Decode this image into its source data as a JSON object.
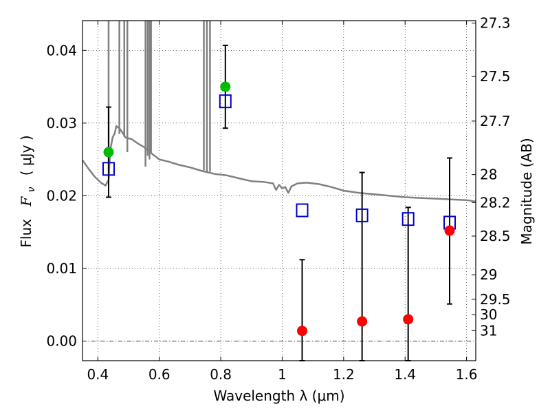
{
  "chart_data": {
    "type": "scatter",
    "xlabel": "Wavelength  λ (μm)",
    "ylabel_prefix": "Flux",
    "ylabel_symbol": "F",
    "ylabel_subscript": "ν",
    "ylabel_units": "( μJy )",
    "y2label": "Magnitude (AB)",
    "xlim": [
      0.35,
      1.63
    ],
    "ylim": [
      -0.0027,
      0.0441
    ],
    "grid": true,
    "x_ticks": [
      {
        "value": 0.4,
        "label": "0.4"
      },
      {
        "value": 0.6,
        "label": "0.6"
      },
      {
        "value": 0.8,
        "label": "0.8"
      },
      {
        "value": 1.0,
        "label": "1"
      },
      {
        "value": 1.2,
        "label": "1.2"
      },
      {
        "value": 1.4,
        "label": "1.4"
      },
      {
        "value": 1.6,
        "label": "1.6"
      }
    ],
    "y_ticks": [
      {
        "value": 0.0,
        "label": "0.00"
      },
      {
        "value": 0.01,
        "label": "0.01"
      },
      {
        "value": 0.02,
        "label": "0.02"
      },
      {
        "value": 0.03,
        "label": "0.03"
      },
      {
        "value": 0.04,
        "label": "0.04"
      }
    ],
    "mag_ticks": [
      {
        "value": 0.04377,
        "label": "27.3"
      },
      {
        "value": 0.03641,
        "label": "27.5"
      },
      {
        "value": 0.03028,
        "label": "27.7"
      },
      {
        "value": 0.02291,
        "label": "28"
      },
      {
        "value": 0.01906,
        "label": "28.2"
      },
      {
        "value": 0.01445,
        "label": "28.5"
      },
      {
        "value": 0.00912,
        "label": "29"
      },
      {
        "value": 0.00575,
        "label": "29.5"
      },
      {
        "value": 0.00363,
        "label": "30"
      },
      {
        "value": 0.00144,
        "label": "31"
      }
    ],
    "model_spectrum": {
      "color": "#808080",
      "points": [
        [
          0.35,
          0.0249
        ],
        [
          0.37,
          0.0237
        ],
        [
          0.39,
          0.0226
        ],
        [
          0.41,
          0.0218
        ],
        [
          0.425,
          0.0214
        ],
        [
          0.435,
          0.0222
        ],
        [
          0.44,
          0.0262
        ],
        [
          0.448,
          0.028
        ],
        [
          0.455,
          0.0286
        ],
        [
          0.46,
          0.0296
        ],
        [
          0.47,
          0.0293
        ],
        [
          0.48,
          0.0287
        ],
        [
          0.49,
          0.028
        ],
        [
          0.51,
          0.0278
        ],
        [
          0.53,
          0.0272
        ],
        [
          0.55,
          0.0267
        ],
        [
          0.57,
          0.026
        ],
        [
          0.6,
          0.025
        ],
        [
          0.63,
          0.0247
        ],
        [
          0.66,
          0.0243
        ],
        [
          0.7,
          0.0239
        ],
        [
          0.74,
          0.0234
        ],
        [
          0.78,
          0.023
        ],
        [
          0.82,
          0.0228
        ],
        [
          0.86,
          0.0224
        ],
        [
          0.9,
          0.022
        ],
        [
          0.94,
          0.0219
        ],
        [
          0.97,
          0.0217
        ],
        [
          0.98,
          0.0208
        ],
        [
          0.99,
          0.0215
        ],
        [
          1.0,
          0.021
        ],
        [
          1.01,
          0.0212
        ],
        [
          1.02,
          0.0204
        ],
        [
          1.03,
          0.0213
        ],
        [
          1.05,
          0.0217
        ],
        [
          1.08,
          0.0218
        ],
        [
          1.12,
          0.0216
        ],
        [
          1.16,
          0.0212
        ],
        [
          1.2,
          0.0207
        ],
        [
          1.25,
          0.0204
        ],
        [
          1.3,
          0.0202
        ],
        [
          1.35,
          0.02
        ],
        [
          1.4,
          0.0198
        ],
        [
          1.45,
          0.0197
        ],
        [
          1.5,
          0.0196
        ],
        [
          1.55,
          0.0195
        ],
        [
          1.6,
          0.0194
        ],
        [
          1.63,
          0.0192
        ]
      ],
      "emission_lines": [
        {
          "x": 0.435,
          "peak": 0.0441,
          "base": 0.0225
        },
        {
          "x": 0.47,
          "peak": 0.0441,
          "base": 0.0285
        },
        {
          "x": 0.486,
          "peak": 0.0441,
          "base": 0.0281
        },
        {
          "x": 0.496,
          "peak": 0.0441,
          "base": 0.026
        },
        {
          "x": 0.555,
          "peak": 0.0441,
          "base": 0.024
        },
        {
          "x": 0.562,
          "peak": 0.0441,
          "base": 0.0255
        },
        {
          "x": 0.568,
          "peak": 0.0441,
          "base": 0.025
        },
        {
          "x": 0.573,
          "peak": 0.0441,
          "base": 0.0258
        },
        {
          "x": 0.745,
          "peak": 0.0441,
          "base": 0.0235
        },
        {
          "x": 0.755,
          "peak": 0.0441,
          "base": 0.0233
        },
        {
          "x": 0.765,
          "peak": 0.0441,
          "base": 0.0233
        }
      ]
    },
    "series": [
      {
        "marker": "open-square",
        "color": "#0000cc",
        "points": [
          {
            "x": 0.435,
            "y": 0.0237
          },
          {
            "x": 0.815,
            "y": 0.033
          },
          {
            "x": 1.065,
            "y": 0.018
          },
          {
            "x": 1.26,
            "y": 0.0173
          },
          {
            "x": 1.41,
            "y": 0.0168
          },
          {
            "x": 1.545,
            "y": 0.0163
          }
        ]
      },
      {
        "marker": "filled-circle",
        "color": "#00bb00",
        "points": [
          {
            "x": 0.435,
            "y": 0.026,
            "err_low": 0.0198,
            "err_high": 0.0322
          },
          {
            "x": 0.815,
            "y": 0.035,
            "err_low": 0.0293,
            "err_high": 0.0407
          }
        ]
      },
      {
        "marker": "filled-circle",
        "color": "#ff0000",
        "points": [
          {
            "x": 1.065,
            "y": 0.0014,
            "err_low": -0.0027,
            "err_high": 0.0112
          },
          {
            "x": 1.26,
            "y": 0.0027,
            "err_low": -0.0027,
            "err_high": 0.0232
          },
          {
            "x": 1.41,
            "y": 0.003,
            "err_low": -0.0027,
            "err_high": 0.0184
          },
          {
            "x": 1.545,
            "y": 0.0152,
            "err_low": 0.0051,
            "err_high": 0.0252
          }
        ]
      }
    ]
  }
}
